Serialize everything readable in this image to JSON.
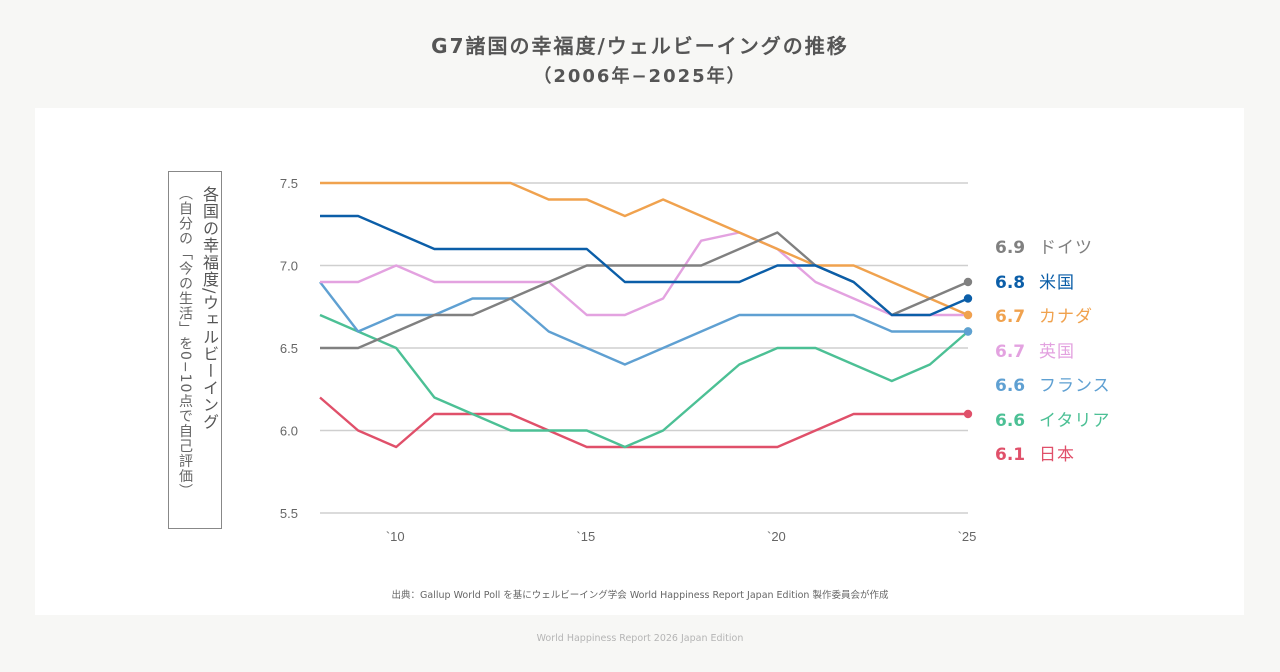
{
  "header": {
    "title": "G7諸国の幸福度/ウェルビーイングの推移",
    "subtitle": "（2006年−2025年）"
  },
  "y_axis_box": {
    "line1": "各国の幸福度/ウェルビーイング",
    "line2": "（自分の「今の生活」を0−10点で自己評価）"
  },
  "source": "出典：Gallup World Poll を基にウェルビーイング学会 World Happiness Report Japan Edition 製作委員会が作成",
  "footer": "World Happiness Report 2026 Japan Edition",
  "chart_data": {
    "type": "line",
    "title": "G7諸国の幸福度/ウェルビーイングの推移",
    "subtitle": "（2006年−2025年）",
    "xlabel": "",
    "ylabel": "各国の幸福度/ウェルビーイング（自分の「今の生活」を0−10点で自己評価）",
    "x": [
      2008,
      2009,
      2010,
      2011,
      2012,
      2013,
      2014,
      2015,
      2016,
      2017,
      2018,
      2019,
      2020,
      2021,
      2022,
      2023,
      2024,
      2025
    ],
    "xlim": [
      2008,
      2025
    ],
    "ylim": [
      5.5,
      7.5
    ],
    "grid": true,
    "yticks": [
      "7.5",
      "7.0",
      "6.5",
      "6.0",
      "5.5"
    ],
    "ytick_values": [
      7.5,
      7.0,
      6.5,
      6.0,
      5.5
    ],
    "xticks": [
      "`10",
      "`15",
      "`20",
      "`25"
    ],
    "xtick_values": [
      2010,
      2015,
      2020,
      2025
    ],
    "legend_position": "right",
    "series": [
      {
        "name": "ドイツ",
        "label": "6.9",
        "color": "#808080",
        "values": [
          6.5,
          6.5,
          6.6,
          6.7,
          6.7,
          6.8,
          6.9,
          7.0,
          7.0,
          7.0,
          7.0,
          7.1,
          7.2,
          7.0,
          6.9,
          6.7,
          6.8,
          6.9
        ]
      },
      {
        "name": "米国",
        "label": "6.8",
        "color": "#0b5ea8",
        "values": [
          7.3,
          7.3,
          7.2,
          7.1,
          7.1,
          7.1,
          7.1,
          7.1,
          6.9,
          6.9,
          6.9,
          6.9,
          7.0,
          7.0,
          6.9,
          6.7,
          6.7,
          6.8
        ]
      },
      {
        "name": "カナダ",
        "label": "6.7",
        "color": "#f0a24e",
        "values": [
          7.5,
          7.5,
          7.5,
          7.5,
          7.5,
          7.5,
          7.4,
          7.4,
          7.3,
          7.4,
          7.3,
          7.2,
          7.1,
          7.0,
          7.0,
          6.9,
          6.8,
          6.7
        ]
      },
      {
        "name": "英国",
        "label": "6.7",
        "color": "#e3a2e0",
        "values": [
          6.9,
          6.9,
          7.0,
          6.9,
          6.9,
          6.9,
          6.9,
          6.7,
          6.7,
          6.8,
          7.15,
          7.2,
          7.1,
          6.9,
          6.8,
          6.7,
          6.7,
          6.7
        ]
      },
      {
        "name": "フランス",
        "label": "6.6",
        "color": "#5fa0d2",
        "values": [
          6.9,
          6.6,
          6.7,
          6.7,
          6.8,
          6.8,
          6.6,
          6.5,
          6.4,
          6.5,
          6.6,
          6.7,
          6.7,
          6.7,
          6.7,
          6.6,
          6.6,
          6.6
        ]
      },
      {
        "name": "イタリア",
        "label": "6.6",
        "color": "#4cc095",
        "values": [
          6.7,
          6.6,
          6.5,
          6.2,
          6.1,
          6.0,
          6.0,
          6.0,
          5.9,
          6.0,
          6.2,
          6.4,
          6.5,
          6.5,
          6.4,
          6.3,
          6.4,
          6.6
        ]
      },
      {
        "name": "日本",
        "label": "6.1",
        "color": "#e0506a",
        "values": [
          6.2,
          6.0,
          5.9,
          6.1,
          6.1,
          6.1,
          6.0,
          5.9,
          5.9,
          5.9,
          5.9,
          5.9,
          5.9,
          6.0,
          6.1,
          6.1,
          6.1,
          6.1
        ]
      }
    ]
  }
}
